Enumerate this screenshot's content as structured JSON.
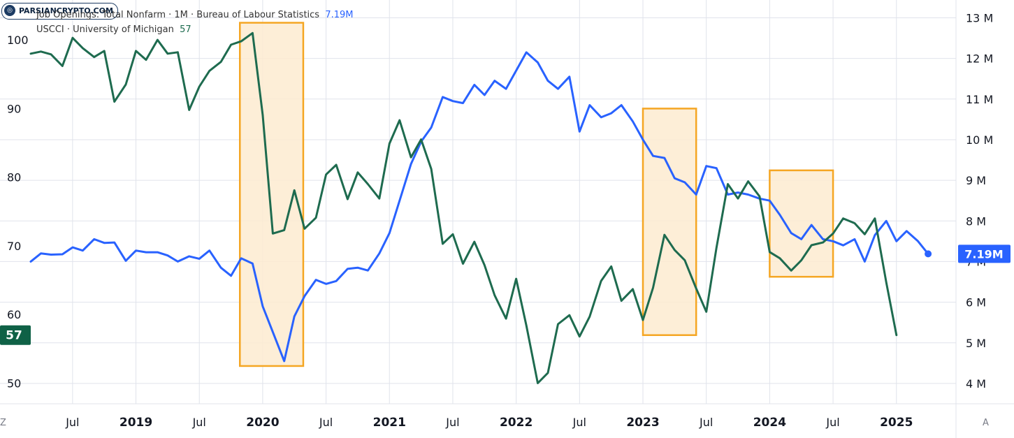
{
  "watermark": "PARSIANCRYPTO.COM",
  "legend": {
    "job_openings": {
      "label": "Job Openings: Total Nonfarm · 1M · Bureau of Labour Statistics",
      "value": "7.19M"
    },
    "usscci": {
      "label": "USCCI · University of Michigan",
      "value": "57"
    }
  },
  "corner_left": "Z",
  "corner_right": "A",
  "colors": {
    "job_openings": "#2962ff",
    "sentiment": "#1e6b4f",
    "highlight_fill": "#fdebd0",
    "highlight_stroke": "#f5a623",
    "grid": "#e0e3eb"
  },
  "chart_data": {
    "type": "line",
    "x_ticks": [
      {
        "x": 2018.5,
        "label": "Jul"
      },
      {
        "x": 2019.0,
        "label": "2019"
      },
      {
        "x": 2019.5,
        "label": "Jul"
      },
      {
        "x": 2020.0,
        "label": "2020"
      },
      {
        "x": 2020.5,
        "label": "Jul"
      },
      {
        "x": 2021.0,
        "label": "2021"
      },
      {
        "x": 2021.5,
        "label": "Jul"
      },
      {
        "x": 2022.0,
        "label": "2022"
      },
      {
        "x": 2022.5,
        "label": "Jul"
      },
      {
        "x": 2023.0,
        "label": "2023"
      },
      {
        "x": 2023.5,
        "label": "Jul"
      },
      {
        "x": 2024.0,
        "label": "2024"
      },
      {
        "x": 2024.5,
        "label": "Jul"
      },
      {
        "x": 2025.0,
        "label": "2025"
      }
    ],
    "left_axis": {
      "ticks": [
        50,
        60,
        70,
        80,
        90,
        100
      ],
      "range": [
        47,
        105
      ]
    },
    "right_axis": {
      "ticks": [
        4,
        5,
        6,
        7,
        8,
        9,
        10,
        11,
        12,
        13
      ],
      "labels": [
        "4 M",
        "5 M",
        "6 M",
        "7 M",
        "8 M",
        "9 M",
        "10 M",
        "11 M",
        "12 M",
        "13 M"
      ],
      "range": [
        3.5,
        13.3
      ]
    },
    "xlim": [
      2018.17,
      2025.47
    ],
    "series": [
      {
        "name": "Job Openings: Total Nonfarm",
        "axis": "right",
        "last_label": "7.19M",
        "points": [
          [
            2018.17,
            7.0
          ],
          [
            2018.25,
            7.2
          ],
          [
            2018.33,
            7.17
          ],
          [
            2018.42,
            7.18
          ],
          [
            2018.5,
            7.35
          ],
          [
            2018.58,
            7.27
          ],
          [
            2018.67,
            7.55
          ],
          [
            2018.75,
            7.46
          ],
          [
            2018.83,
            7.47
          ],
          [
            2018.92,
            7.02
          ],
          [
            2019.0,
            7.27
          ],
          [
            2019.08,
            7.23
          ],
          [
            2019.17,
            7.23
          ],
          [
            2019.25,
            7.15
          ],
          [
            2019.33,
            7.0
          ],
          [
            2019.42,
            7.13
          ],
          [
            2019.5,
            7.07
          ],
          [
            2019.58,
            7.27
          ],
          [
            2019.67,
            6.85
          ],
          [
            2019.75,
            6.65
          ],
          [
            2019.83,
            7.08
          ],
          [
            2019.92,
            6.95
          ],
          [
            2020.0,
            5.9
          ],
          [
            2020.17,
            4.55
          ],
          [
            2020.25,
            5.65
          ],
          [
            2020.33,
            6.15
          ],
          [
            2020.42,
            6.55
          ],
          [
            2020.5,
            6.45
          ],
          [
            2020.58,
            6.52
          ],
          [
            2020.67,
            6.82
          ],
          [
            2020.75,
            6.85
          ],
          [
            2020.83,
            6.78
          ],
          [
            2020.92,
            7.2
          ],
          [
            2021.0,
            7.7
          ],
          [
            2021.08,
            8.5
          ],
          [
            2021.17,
            9.4
          ],
          [
            2021.25,
            9.95
          ],
          [
            2021.33,
            10.3
          ],
          [
            2021.42,
            11.05
          ],
          [
            2021.5,
            10.95
          ],
          [
            2021.58,
            10.9
          ],
          [
            2021.67,
            11.35
          ],
          [
            2021.75,
            11.1
          ],
          [
            2021.83,
            11.45
          ],
          [
            2021.92,
            11.25
          ],
          [
            2022.0,
            11.7
          ],
          [
            2022.08,
            12.15
          ],
          [
            2022.17,
            11.9
          ],
          [
            2022.25,
            11.45
          ],
          [
            2022.33,
            11.25
          ],
          [
            2022.42,
            11.55
          ],
          [
            2022.5,
            10.2
          ],
          [
            2022.58,
            10.85
          ],
          [
            2022.67,
            10.55
          ],
          [
            2022.75,
            10.65
          ],
          [
            2022.83,
            10.85
          ],
          [
            2022.92,
            10.45
          ],
          [
            2023.0,
            10.0
          ],
          [
            2023.08,
            9.6
          ],
          [
            2023.17,
            9.55
          ],
          [
            2023.25,
            9.05
          ],
          [
            2023.33,
            8.95
          ],
          [
            2023.42,
            8.65
          ],
          [
            2023.5,
            9.35
          ],
          [
            2023.58,
            9.3
          ],
          [
            2023.67,
            8.65
          ],
          [
            2023.75,
            8.7
          ],
          [
            2023.83,
            8.65
          ],
          [
            2023.92,
            8.55
          ],
          [
            2024.0,
            8.5
          ],
          [
            2024.08,
            8.15
          ],
          [
            2024.17,
            7.7
          ],
          [
            2024.25,
            7.55
          ],
          [
            2024.33,
            7.9
          ],
          [
            2024.42,
            7.55
          ],
          [
            2024.5,
            7.5
          ],
          [
            2024.58,
            7.4
          ],
          [
            2024.67,
            7.55
          ],
          [
            2024.75,
            7.0
          ],
          [
            2024.83,
            7.65
          ],
          [
            2024.92,
            8.0
          ],
          [
            2025.0,
            7.5
          ],
          [
            2025.08,
            7.75
          ],
          [
            2025.17,
            7.5
          ],
          [
            2025.25,
            7.19
          ]
        ]
      },
      {
        "name": "USCCI",
        "axis": "left",
        "last_label": "57",
        "points": [
          [
            2018.17,
            98.0
          ],
          [
            2018.25,
            98.3
          ],
          [
            2018.33,
            97.9
          ],
          [
            2018.42,
            96.2
          ],
          [
            2018.5,
            100.3
          ],
          [
            2018.58,
            98.8
          ],
          [
            2018.67,
            97.5
          ],
          [
            2018.75,
            98.4
          ],
          [
            2018.83,
            91.0
          ],
          [
            2018.92,
            93.5
          ],
          [
            2019.0,
            98.4
          ],
          [
            2019.08,
            97.1
          ],
          [
            2019.17,
            100.0
          ],
          [
            2019.25,
            98.0
          ],
          [
            2019.33,
            98.2
          ],
          [
            2019.42,
            89.8
          ],
          [
            2019.5,
            93.2
          ],
          [
            2019.58,
            95.5
          ],
          [
            2019.67,
            96.8
          ],
          [
            2019.75,
            99.3
          ],
          [
            2019.83,
            99.8
          ],
          [
            2019.92,
            101.0
          ],
          [
            2020.0,
            89.1
          ],
          [
            2020.08,
            71.8
          ],
          [
            2020.17,
            72.3
          ],
          [
            2020.25,
            78.1
          ],
          [
            2020.33,
            72.5
          ],
          [
            2020.42,
            74.1
          ],
          [
            2020.5,
            80.4
          ],
          [
            2020.58,
            81.8
          ],
          [
            2020.67,
            76.8
          ],
          [
            2020.75,
            80.7
          ],
          [
            2020.83,
            79.0
          ],
          [
            2020.92,
            76.9
          ],
          [
            2021.0,
            84.9
          ],
          [
            2021.08,
            88.3
          ],
          [
            2021.17,
            82.9
          ],
          [
            2021.25,
            85.5
          ],
          [
            2021.33,
            81.2
          ],
          [
            2021.42,
            70.3
          ],
          [
            2021.5,
            71.7
          ],
          [
            2021.58,
            67.4
          ],
          [
            2021.67,
            70.6
          ],
          [
            2021.75,
            67.2
          ],
          [
            2021.83,
            62.8
          ],
          [
            2021.92,
            59.4
          ],
          [
            2022.0,
            65.2
          ],
          [
            2022.08,
            58.4
          ],
          [
            2022.17,
            50.0
          ],
          [
            2022.25,
            51.5
          ],
          [
            2022.33,
            58.6
          ],
          [
            2022.42,
            59.9
          ],
          [
            2022.5,
            56.8
          ],
          [
            2022.58,
            59.7
          ],
          [
            2022.67,
            64.9
          ],
          [
            2022.75,
            67.0
          ],
          [
            2022.83,
            62.0
          ],
          [
            2022.92,
            63.7
          ],
          [
            2023.0,
            59.2
          ],
          [
            2023.08,
            63.9
          ],
          [
            2023.17,
            71.6
          ],
          [
            2023.25,
            69.4
          ],
          [
            2023.33,
            67.9
          ],
          [
            2023.42,
            63.8
          ],
          [
            2023.5,
            60.4
          ],
          [
            2023.58,
            69.7
          ],
          [
            2023.67,
            79.0
          ],
          [
            2023.75,
            76.9
          ],
          [
            2023.83,
            79.4
          ],
          [
            2023.92,
            77.2
          ],
          [
            2024.0,
            69.1
          ],
          [
            2024.08,
            68.2
          ],
          [
            2024.17,
            66.4
          ],
          [
            2024.25,
            67.9
          ],
          [
            2024.33,
            70.1
          ],
          [
            2024.42,
            70.5
          ],
          [
            2024.5,
            71.8
          ],
          [
            2024.58,
            74.0
          ],
          [
            2024.67,
            73.3
          ],
          [
            2024.75,
            71.7
          ],
          [
            2024.83,
            74.0
          ],
          [
            2024.92,
            64.7
          ],
          [
            2025.0,
            57.0
          ]
        ]
      }
    ],
    "highlights": [
      {
        "x0": 2019.82,
        "x1": 2020.32,
        "y0_left": 102.5,
        "y1_left": 52.5
      },
      {
        "x0": 2023.0,
        "x1": 2023.42,
        "y0_left": 90.0,
        "y1_left": 57.0
      },
      {
        "x0": 2024.0,
        "x1": 2024.5,
        "y0_left": 81.0,
        "y1_left": 65.5
      }
    ]
  }
}
